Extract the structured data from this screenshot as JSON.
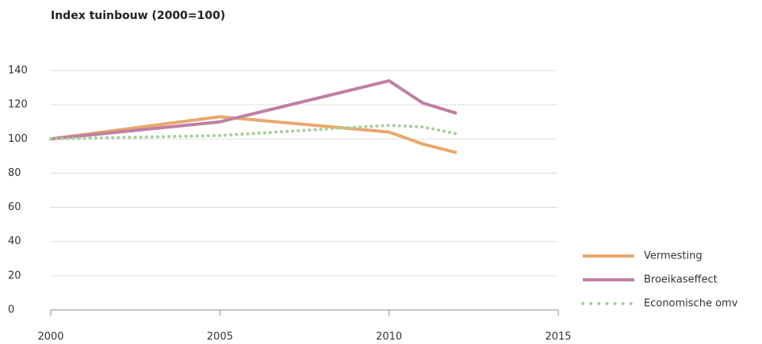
{
  "chart_data": {
    "type": "line",
    "title": "Index tuinbouw (2000=100)",
    "x": [
      2000,
      2005,
      2010,
      2011,
      2012
    ],
    "xlim": [
      2000,
      2015
    ],
    "xticks": [
      2000,
      2005,
      2010,
      2015
    ],
    "ylim": [
      0,
      140
    ],
    "yticks": [
      0,
      20,
      40,
      60,
      80,
      100,
      120,
      140
    ],
    "grid": true,
    "legend": "right",
    "series": [
      {
        "name": "Vermesting",
        "color": "#e8a96e",
        "style": "solid",
        "values": [
          100,
          113,
          104,
          97,
          92
        ]
      },
      {
        "name": "Broeikaseffect",
        "color": "#c07fa5",
        "style": "solid",
        "values": [
          100,
          110,
          134,
          121,
          115
        ]
      },
      {
        "name": "Economische omv",
        "color": "#a6cf9a",
        "style": "dotted",
        "values": [
          100,
          102,
          108,
          107,
          103
        ]
      }
    ]
  }
}
